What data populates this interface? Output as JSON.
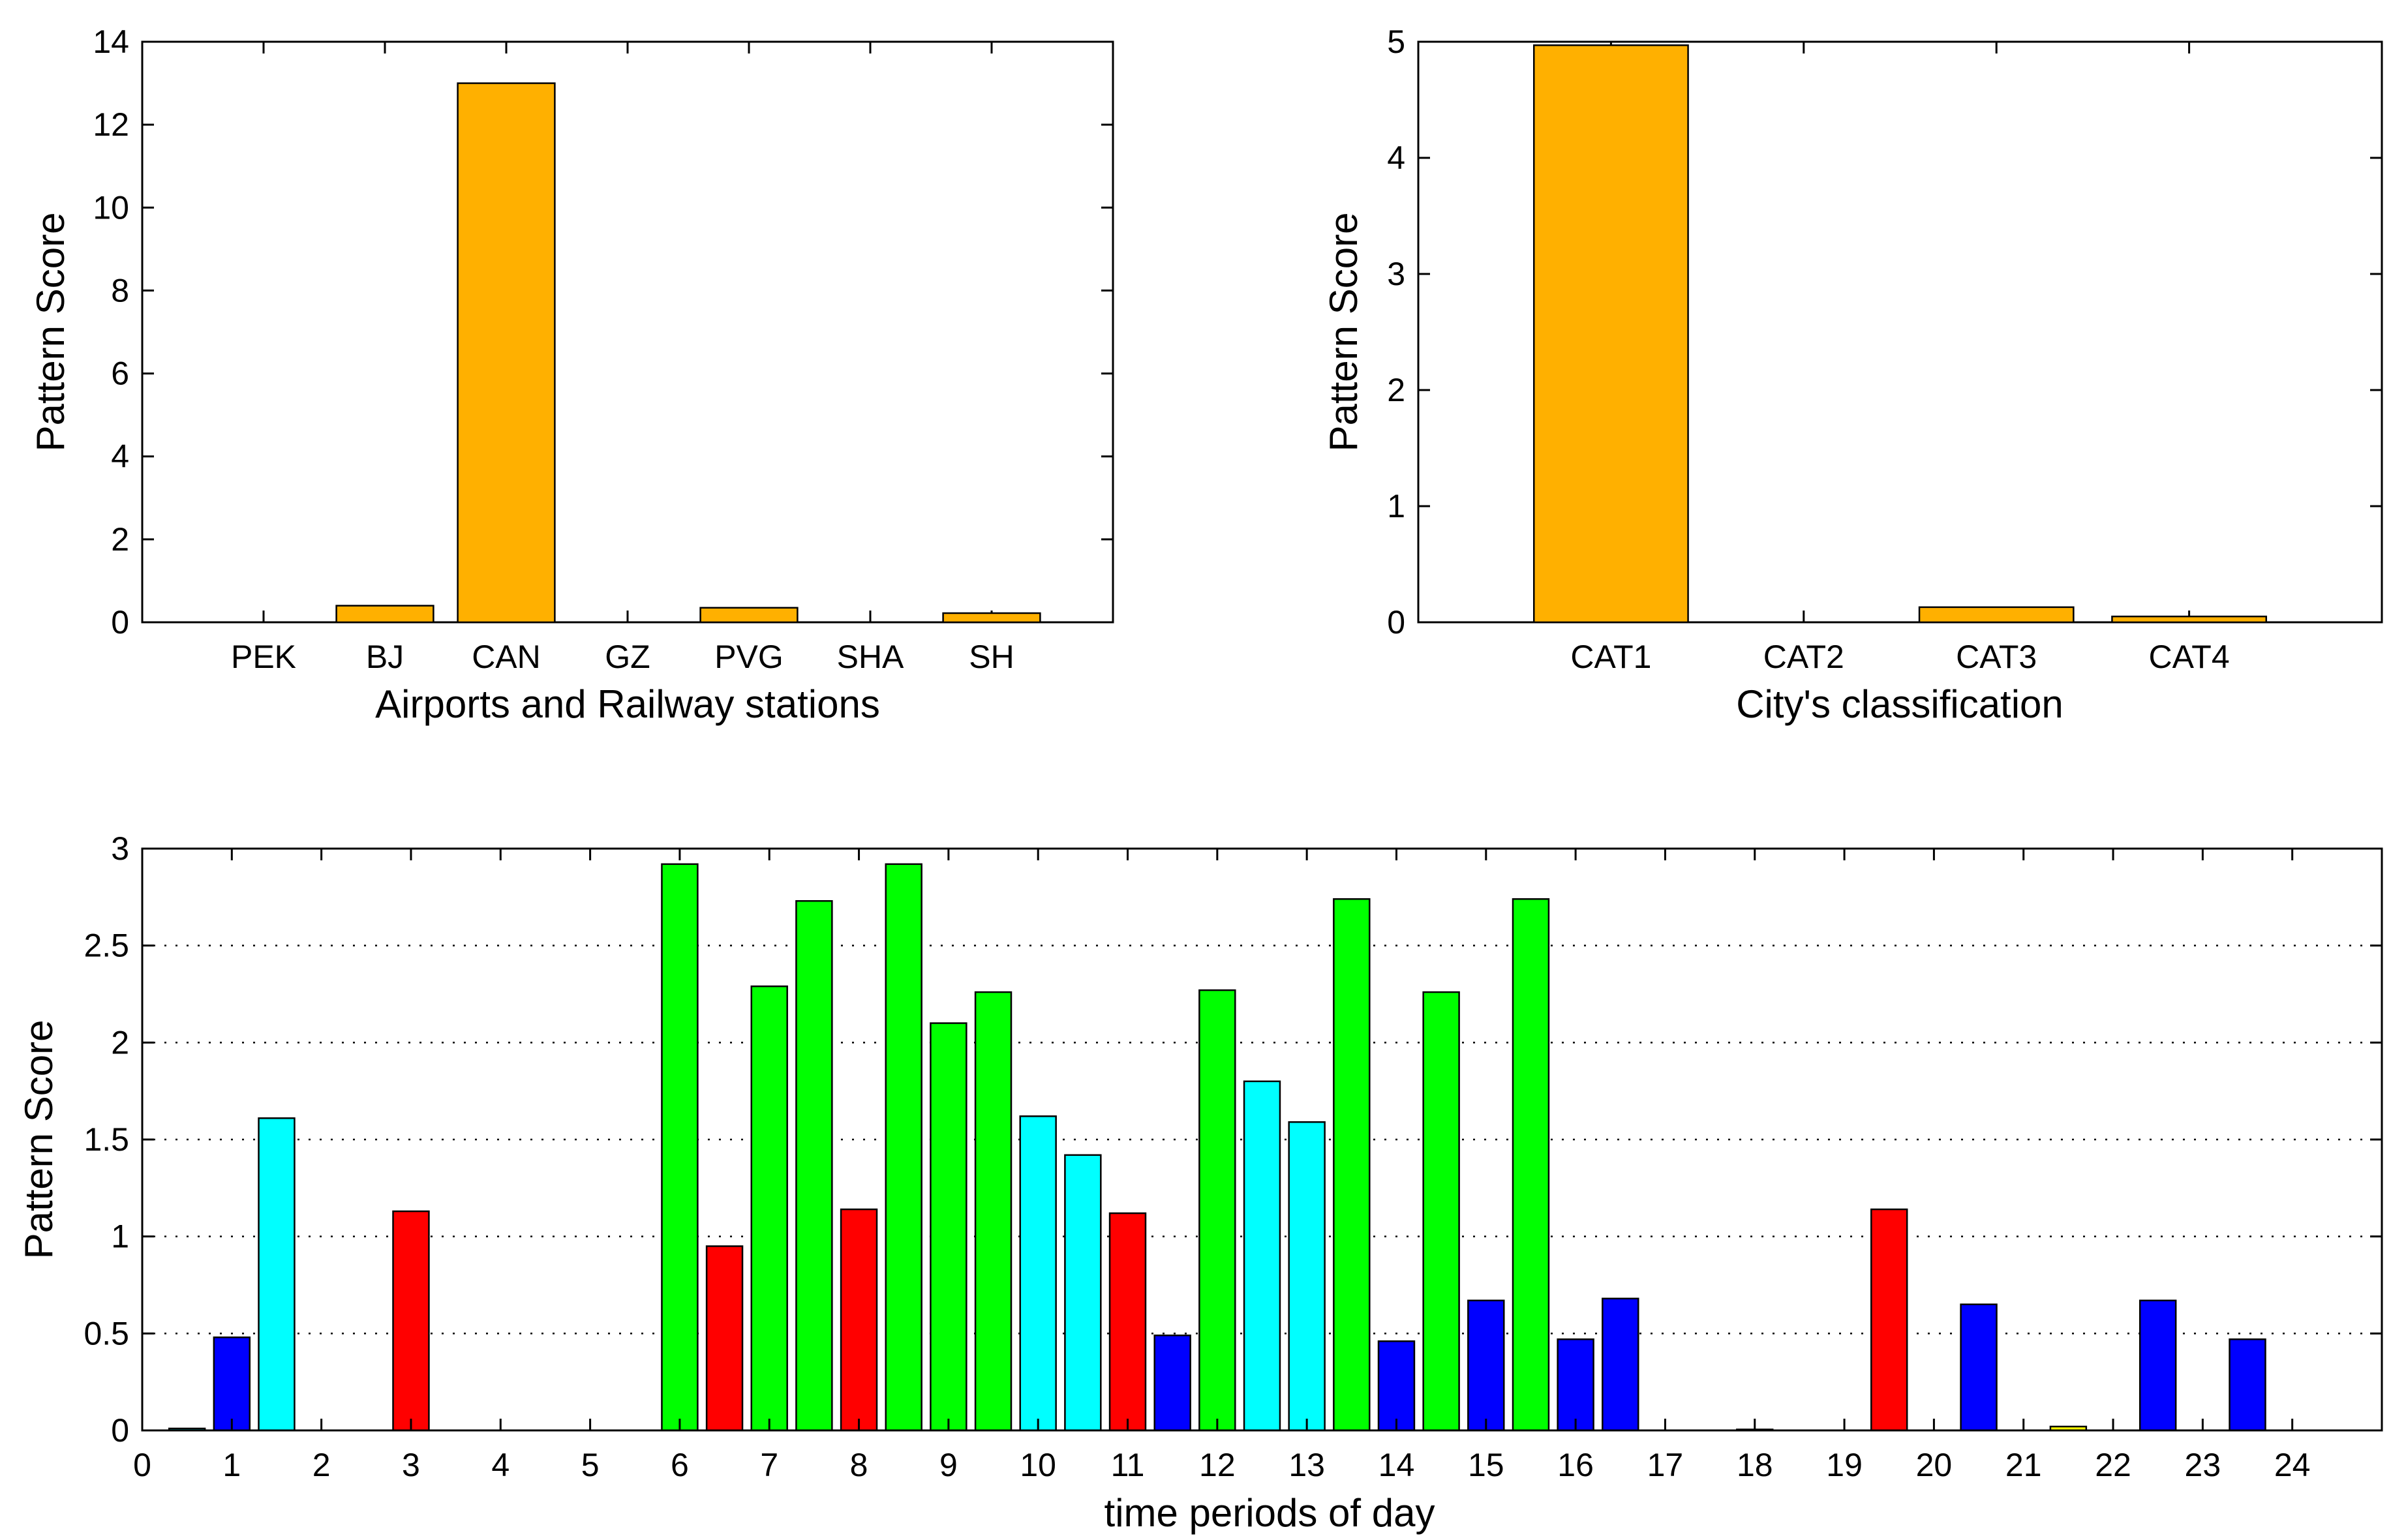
{
  "chart_data": [
    {
      "id": "airports",
      "type": "bar",
      "title": "",
      "xlabel": "Airports and Railway stations",
      "ylabel": "Pattern Score",
      "categories": [
        "PEK",
        "BJ",
        "CAN",
        "GZ",
        "PVG",
        "SHA",
        "SH"
      ],
      "values": [
        0,
        0.4,
        13.0,
        0,
        0.35,
        0,
        0.22
      ],
      "ylim": [
        0,
        14
      ],
      "yticks": [
        0,
        2,
        4,
        6,
        8,
        10,
        12,
        14
      ],
      "grid": false,
      "color": "#FFB000"
    },
    {
      "id": "city_class",
      "type": "bar",
      "title": "",
      "xlabel": "City's classification",
      "ylabel": "Pattern Score",
      "categories": [
        "CAT1",
        "CAT2",
        "CAT3",
        "CAT4"
      ],
      "values": [
        4.97,
        0,
        0.13,
        0.05
      ],
      "ylim": [
        0,
        5
      ],
      "yticks": [
        0,
        1,
        2,
        3,
        4,
        5
      ],
      "grid": false,
      "color": "#FFB000"
    },
    {
      "id": "time_periods",
      "type": "bar",
      "title": "",
      "xlabel": "time periods of day",
      "ylabel": "Pattern Score",
      "xlim": [
        0,
        25
      ],
      "ylim": [
        0,
        3
      ],
      "xticks": [
        0,
        1,
        2,
        3,
        4,
        5,
        6,
        7,
        8,
        9,
        10,
        11,
        12,
        13,
        14,
        15,
        16,
        17,
        18,
        19,
        20,
        21,
        22,
        23,
        24
      ],
      "yticks": [
        0,
        0.5,
        1,
        1.5,
        2,
        2.5,
        3
      ],
      "ytick_labels": [
        "0",
        "0.5",
        "1",
        "1.5",
        "2",
        "2.5",
        "3"
      ],
      "grid": "horizontal dotted",
      "bar_width": 0.4,
      "colors": {
        "blue": "#0000FF",
        "cyan": "#00FFFF",
        "red": "#FF0000",
        "green": "#00FF00",
        "yellow": "#FFFF00"
      },
      "bars": [
        {
          "x": 0.5,
          "y": 0.01,
          "color": "cyan"
        },
        {
          "x": 1.0,
          "y": 0.48,
          "color": "blue"
        },
        {
          "x": 1.5,
          "y": 1.61,
          "color": "cyan"
        },
        {
          "x": 3.0,
          "y": 1.13,
          "color": "red"
        },
        {
          "x": 6.0,
          "y": 2.92,
          "color": "green"
        },
        {
          "x": 6.5,
          "y": 0.95,
          "color": "red"
        },
        {
          "x": 7.0,
          "y": 2.29,
          "color": "green"
        },
        {
          "x": 7.5,
          "y": 2.73,
          "color": "green"
        },
        {
          "x": 8.0,
          "y": 1.14,
          "color": "red"
        },
        {
          "x": 8.5,
          "y": 2.92,
          "color": "green"
        },
        {
          "x": 9.0,
          "y": 2.1,
          "color": "green"
        },
        {
          "x": 9.5,
          "y": 2.26,
          "color": "green"
        },
        {
          "x": 10.0,
          "y": 1.62,
          "color": "cyan"
        },
        {
          "x": 10.5,
          "y": 1.42,
          "color": "cyan"
        },
        {
          "x": 11.0,
          "y": 1.12,
          "color": "red"
        },
        {
          "x": 11.5,
          "y": 0.49,
          "color": "blue"
        },
        {
          "x": 12.0,
          "y": 2.27,
          "color": "green"
        },
        {
          "x": 12.5,
          "y": 1.8,
          "color": "cyan"
        },
        {
          "x": 13.0,
          "y": 1.59,
          "color": "cyan"
        },
        {
          "x": 13.5,
          "y": 2.74,
          "color": "green"
        },
        {
          "x": 14.0,
          "y": 0.46,
          "color": "blue"
        },
        {
          "x": 14.5,
          "y": 2.26,
          "color": "green"
        },
        {
          "x": 15.0,
          "y": 0.67,
          "color": "blue"
        },
        {
          "x": 15.5,
          "y": 2.74,
          "color": "green"
        },
        {
          "x": 16.0,
          "y": 0.47,
          "color": "blue"
        },
        {
          "x": 16.5,
          "y": 0.68,
          "color": "blue"
        },
        {
          "x": 18.0,
          "y": 0.005,
          "color": "green"
        },
        {
          "x": 19.5,
          "y": 1.14,
          "color": "red"
        },
        {
          "x": 20.5,
          "y": 0.65,
          "color": "blue"
        },
        {
          "x": 21.5,
          "y": 0.02,
          "color": "yellow"
        },
        {
          "x": 22.5,
          "y": 0.67,
          "color": "blue"
        },
        {
          "x": 23.5,
          "y": 0.47,
          "color": "blue"
        }
      ]
    }
  ]
}
